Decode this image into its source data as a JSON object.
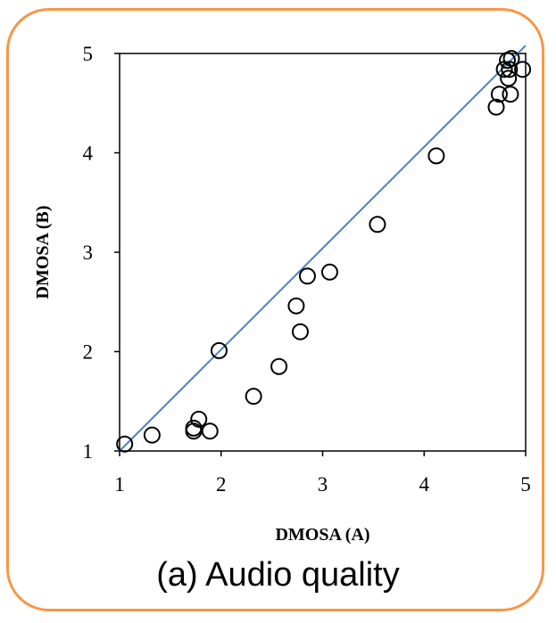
{
  "caption": "(a) Audio quality",
  "colors": {
    "frame": "#f79646",
    "fit_line": "#4f81bd",
    "marker": "#000000"
  },
  "chart_data": {
    "type": "scatter",
    "xlabel": "DMOSA (A)",
    "ylabel": "DMOSA (B)",
    "xlim": [
      1,
      5
    ],
    "ylim": [
      1,
      5
    ],
    "xticks": [
      "1",
      "2",
      "3",
      "4",
      "5"
    ],
    "yticks": [
      "1",
      "2",
      "3",
      "4",
      "5"
    ],
    "grid": false,
    "marker": "open-circle",
    "points": [
      {
        "x": 1.05,
        "y": 1.07
      },
      {
        "x": 1.32,
        "y": 1.16
      },
      {
        "x": 1.73,
        "y": 1.2
      },
      {
        "x": 1.73,
        "y": 1.23
      },
      {
        "x": 1.78,
        "y": 1.32
      },
      {
        "x": 1.89,
        "y": 1.2
      },
      {
        "x": 1.98,
        "y": 2.01
      },
      {
        "x": 2.32,
        "y": 1.55
      },
      {
        "x": 2.57,
        "y": 1.85
      },
      {
        "x": 2.74,
        "y": 2.46
      },
      {
        "x": 2.78,
        "y": 2.2
      },
      {
        "x": 2.85,
        "y": 2.76
      },
      {
        "x": 3.07,
        "y": 2.8
      },
      {
        "x": 3.54,
        "y": 3.28
      },
      {
        "x": 4.12,
        "y": 3.97
      },
      {
        "x": 4.71,
        "y": 4.46
      },
      {
        "x": 4.74,
        "y": 4.59
      },
      {
        "x": 4.79,
        "y": 4.84
      },
      {
        "x": 4.82,
        "y": 4.93
      },
      {
        "x": 4.83,
        "y": 4.75
      },
      {
        "x": 4.84,
        "y": 4.84
      },
      {
        "x": 4.85,
        "y": 4.59
      },
      {
        "x": 4.86,
        "y": 4.95
      },
      {
        "x": 4.97,
        "y": 4.84
      }
    ],
    "fit_line": {
      "x": [
        1.0,
        5.0
      ],
      "y": [
        1.0,
        5.08
      ]
    }
  }
}
